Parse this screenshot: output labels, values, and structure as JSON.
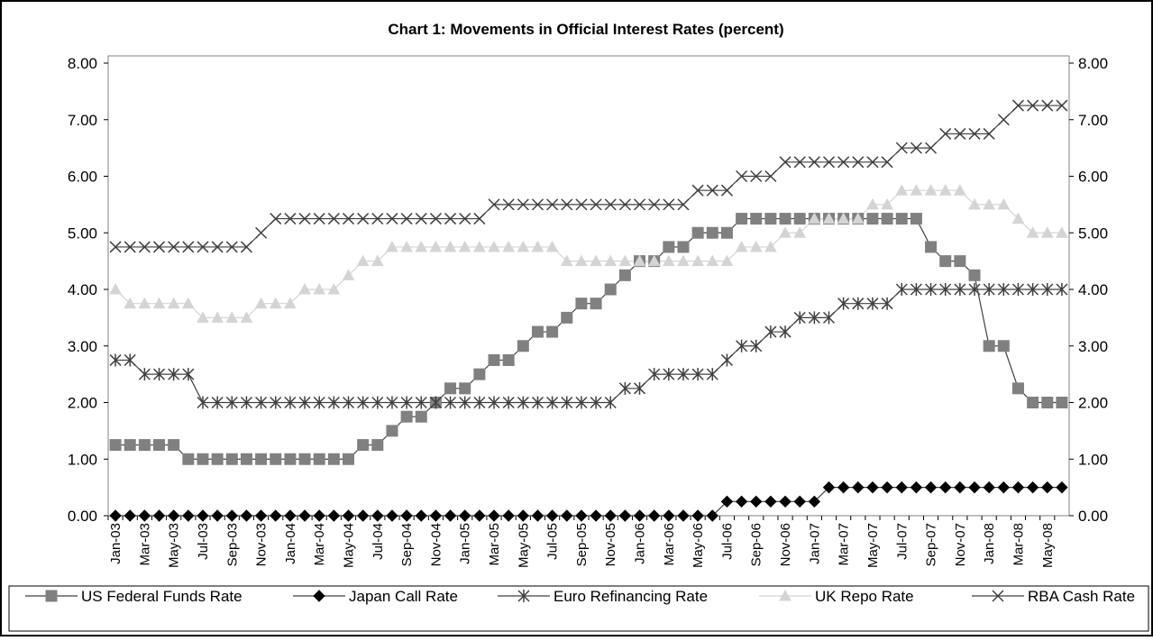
{
  "chart_data": {
    "type": "line",
    "title": "Chart 1: Movements in Official Interest Rates (percent)",
    "categories": [
      "Jan-03",
      null,
      "Mar-03",
      null,
      "May-03",
      null,
      "Jul-03",
      null,
      "Sep-03",
      null,
      "Nov-03",
      null,
      "Jan-04",
      null,
      "Mar-04",
      null,
      "May-04",
      null,
      "Jul-04",
      null,
      "Sep-04",
      null,
      "Nov-04",
      null,
      "Jan-05",
      null,
      "Mar-05",
      null,
      "May-05",
      null,
      "Jul-05",
      null,
      "Sep-05",
      null,
      "Nov-05",
      null,
      "Jan-06",
      null,
      "Mar-06",
      null,
      "May-06",
      null,
      "Jul-06",
      null,
      "Sep-06",
      null,
      "Nov-06",
      null,
      "Jan-07",
      null,
      "Mar-07",
      null,
      "May-07",
      null,
      "Jul-07",
      null,
      "Sep-07",
      null,
      "Nov-07",
      null,
      "Jan-08",
      null,
      "Mar-08",
      null,
      "May-08",
      null
    ],
    "series": [
      {
        "name": "US Federal Funds Rate",
        "color": "#808080",
        "marker": "square",
        "values": [
          1.25,
          1.25,
          1.25,
          1.25,
          1.25,
          1,
          1,
          1,
          1,
          1,
          1,
          1,
          1,
          1,
          1,
          1,
          1,
          1.25,
          1.25,
          1.5,
          1.75,
          1.75,
          2,
          2.25,
          2.25,
          2.5,
          2.75,
          2.75,
          3,
          3.25,
          3.25,
          3.5,
          3.75,
          3.75,
          4,
          4.25,
          4.5,
          4.5,
          4.75,
          4.75,
          5,
          5,
          5,
          5.25,
          5.25,
          5.25,
          5.25,
          5.25,
          5.25,
          5.25,
          5.25,
          5.25,
          5.25,
          5.25,
          5.25,
          5.25,
          4.75,
          4.5,
          4.5,
          4.25,
          3,
          3,
          2.25,
          2,
          2,
          2
        ]
      },
      {
        "name": "Japan Call Rate",
        "color": "#000000",
        "marker": "diamond",
        "values": [
          0,
          0,
          0,
          0,
          0,
          0,
          0,
          0,
          0,
          0,
          0,
          0,
          0,
          0,
          0,
          0,
          0,
          0,
          0,
          0,
          0,
          0,
          0,
          0,
          0,
          0,
          0,
          0,
          0,
          0,
          0,
          0,
          0,
          0,
          0,
          0,
          0,
          0,
          0,
          0,
          0,
          0,
          0.25,
          0.25,
          0.25,
          0.25,
          0.25,
          0.25,
          0.25,
          0.5,
          0.5,
          0.5,
          0.5,
          0.5,
          0.5,
          0.5,
          0.5,
          0.5,
          0.5,
          0.5,
          0.5,
          0.5,
          0.5,
          0.5,
          0.5,
          0.5
        ]
      },
      {
        "name": "Euro Refinancing Rate",
        "color": "#404040",
        "marker": "asterisk",
        "values": [
          2.75,
          2.75,
          2.5,
          2.5,
          2.5,
          2.5,
          2,
          2,
          2,
          2,
          2,
          2,
          2,
          2,
          2,
          2,
          2,
          2,
          2,
          2,
          2,
          2,
          2,
          2,
          2,
          2,
          2,
          2,
          2,
          2,
          2,
          2,
          2,
          2,
          2,
          2.25,
          2.25,
          2.5,
          2.5,
          2.5,
          2.5,
          2.5,
          2.75,
          3,
          3,
          3.25,
          3.25,
          3.5,
          3.5,
          3.5,
          3.75,
          3.75,
          3.75,
          3.75,
          4,
          4,
          4,
          4,
          4,
          4,
          4,
          4,
          4,
          4,
          4,
          4
        ]
      },
      {
        "name": "UK Repo Rate",
        "color": "#d4d4d4",
        "marker": "triangle",
        "values": [
          4,
          3.75,
          3.75,
          3.75,
          3.75,
          3.75,
          3.5,
          3.5,
          3.5,
          3.5,
          3.75,
          3.75,
          3.75,
          4,
          4,
          4,
          4.25,
          4.5,
          4.5,
          4.75,
          4.75,
          4.75,
          4.75,
          4.75,
          4.75,
          4.75,
          4.75,
          4.75,
          4.75,
          4.75,
          4.75,
          4.5,
          4.5,
          4.5,
          4.5,
          4.5,
          4.5,
          4.5,
          4.5,
          4.5,
          4.5,
          4.5,
          4.5,
          4.75,
          4.75,
          4.75,
          5,
          5,
          5.25,
          5.25,
          5.25,
          5.25,
          5.5,
          5.5,
          5.75,
          5.75,
          5.75,
          5.75,
          5.75,
          5.5,
          5.5,
          5.5,
          5.25,
          5,
          5,
          5
        ]
      },
      {
        "name": "RBA Cash Rate",
        "color": "#404040",
        "marker": "cross",
        "values": [
          4.75,
          4.75,
          4.75,
          4.75,
          4.75,
          4.75,
          4.75,
          4.75,
          4.75,
          4.75,
          5,
          5.25,
          5.25,
          5.25,
          5.25,
          5.25,
          5.25,
          5.25,
          5.25,
          5.25,
          5.25,
          5.25,
          5.25,
          5.25,
          5.25,
          5.25,
          5.5,
          5.5,
          5.5,
          5.5,
          5.5,
          5.5,
          5.5,
          5.5,
          5.5,
          5.5,
          5.5,
          5.5,
          5.5,
          5.5,
          5.75,
          5.75,
          5.75,
          6,
          6,
          6,
          6.25,
          6.25,
          6.25,
          6.25,
          6.25,
          6.25,
          6.25,
          6.25,
          6.5,
          6.5,
          6.5,
          6.75,
          6.75,
          6.75,
          6.75,
          7,
          7.25,
          7.25,
          7.25,
          7.25
        ]
      }
    ],
    "ylim": [
      0,
      8
    ],
    "yticks": [
      {
        "value": 0,
        "label": "0.00"
      },
      {
        "value": 1,
        "label": "1.00"
      },
      {
        "value": 2,
        "label": "2.00"
      },
      {
        "value": 3,
        "label": "3.00"
      },
      {
        "value": 4,
        "label": "4.00"
      },
      {
        "value": 5,
        "label": "5.00"
      },
      {
        "value": 6,
        "label": "6.00"
      },
      {
        "value": 7,
        "label": "7.00"
      },
      {
        "value": 8,
        "label": "8.00"
      }
    ],
    "y2lim": [
      0,
      8
    ],
    "y2ticks": [
      {
        "value": 0,
        "label": "0.00"
      },
      {
        "value": 1,
        "label": "1.00"
      },
      {
        "value": 2,
        "label": "2.00"
      },
      {
        "value": 3,
        "label": "3.00"
      },
      {
        "value": 4,
        "label": "4.00"
      },
      {
        "value": 5,
        "label": "5.00"
      },
      {
        "value": 6,
        "label": "6.00"
      },
      {
        "value": 7,
        "label": "7.00"
      },
      {
        "value": 8,
        "label": "8.00"
      }
    ],
    "grid": false,
    "legend": "bottom"
  }
}
